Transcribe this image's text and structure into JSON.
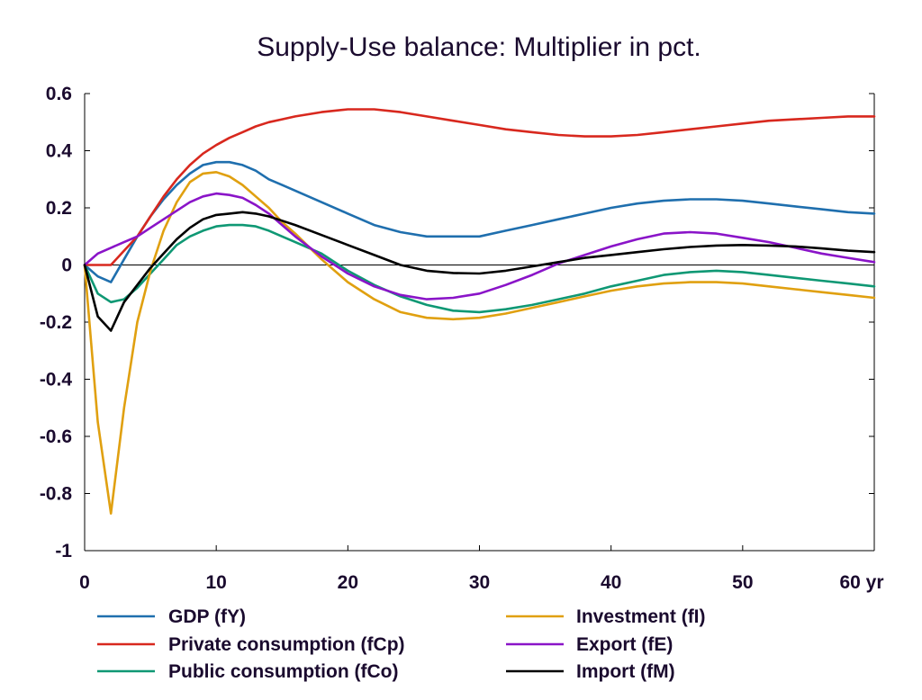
{
  "chart_data": {
    "type": "line",
    "title": "Supply-Use balance: Multiplier in pct.",
    "xlabel": "",
    "ylabel": "",
    "x_unit_label": "yr",
    "xlim": [
      0,
      60
    ],
    "ylim": [
      -1,
      0.6
    ],
    "x_ticks": [
      0,
      10,
      20,
      30,
      40,
      50,
      60
    ],
    "y_ticks": [
      -1,
      -0.8,
      -0.6,
      -0.4,
      -0.2,
      0,
      0.2,
      0.4,
      0.6
    ],
    "x_tick_labels": [
      "0",
      "10",
      "20",
      "30",
      "40",
      "50",
      "60 yr"
    ],
    "y_tick_labels": [
      "-1",
      "-0.8",
      "-0.6",
      "-0.4",
      "-0.2",
      "0",
      "0.2",
      "0.4",
      "0.6"
    ],
    "grid": false,
    "zero_line": true,
    "legend_position": "bottom",
    "x": [
      0,
      1,
      2,
      3,
      4,
      5,
      6,
      7,
      8,
      9,
      10,
      11,
      12,
      13,
      14,
      15,
      16,
      18,
      20,
      22,
      24,
      26,
      28,
      30,
      32,
      34,
      36,
      38,
      40,
      42,
      44,
      46,
      48,
      50,
      52,
      54,
      56,
      58,
      60
    ],
    "series": [
      {
        "name": "GDP (fY)",
        "color": "#1f6fae",
        "values": [
          0,
          -0.04,
          -0.06,
          0.02,
          0.1,
          0.17,
          0.23,
          0.28,
          0.32,
          0.35,
          0.36,
          0.36,
          0.35,
          0.33,
          0.3,
          0.28,
          0.26,
          0.22,
          0.18,
          0.14,
          0.115,
          0.1,
          0.1,
          0.1,
          0.12,
          0.14,
          0.16,
          0.18,
          0.2,
          0.215,
          0.225,
          0.23,
          0.23,
          0.225,
          0.215,
          0.205,
          0.195,
          0.185,
          0.18
        ]
      },
      {
        "name": "Private consumption (fCp)",
        "color": "#d8281e",
        "values": [
          0,
          0,
          0,
          0.05,
          0.1,
          0.17,
          0.24,
          0.3,
          0.35,
          0.39,
          0.42,
          0.445,
          0.465,
          0.485,
          0.5,
          0.51,
          0.52,
          0.535,
          0.545,
          0.545,
          0.535,
          0.52,
          0.505,
          0.49,
          0.475,
          0.465,
          0.455,
          0.45,
          0.45,
          0.455,
          0.465,
          0.475,
          0.485,
          0.495,
          0.505,
          0.51,
          0.515,
          0.52,
          0.52
        ]
      },
      {
        "name": "Public consumption (fCo)",
        "color": "#0f9874",
        "values": [
          0,
          -0.1,
          -0.13,
          -0.12,
          -0.08,
          -0.03,
          0.02,
          0.07,
          0.1,
          0.12,
          0.135,
          0.14,
          0.14,
          0.135,
          0.12,
          0.1,
          0.08,
          0.04,
          -0.02,
          -0.07,
          -0.11,
          -0.14,
          -0.16,
          -0.165,
          -0.155,
          -0.14,
          -0.12,
          -0.1,
          -0.075,
          -0.055,
          -0.035,
          -0.025,
          -0.02,
          -0.025,
          -0.035,
          -0.045,
          -0.055,
          -0.065,
          -0.075
        ]
      },
      {
        "name": "Investment (fI)",
        "color": "#e0a010",
        "values": [
          0,
          -0.55,
          -0.87,
          -0.5,
          -0.2,
          -0.02,
          0.12,
          0.22,
          0.29,
          0.32,
          0.325,
          0.31,
          0.28,
          0.24,
          0.2,
          0.15,
          0.11,
          0.02,
          -0.06,
          -0.12,
          -0.165,
          -0.185,
          -0.19,
          -0.185,
          -0.17,
          -0.15,
          -0.13,
          -0.11,
          -0.09,
          -0.075,
          -0.065,
          -0.06,
          -0.06,
          -0.065,
          -0.075,
          -0.085,
          -0.095,
          -0.105,
          -0.115
        ]
      },
      {
        "name": "Export (fE)",
        "color": "#8a14c8",
        "values": [
          0,
          0.04,
          0.06,
          0.08,
          0.1,
          0.13,
          0.16,
          0.19,
          0.22,
          0.24,
          0.25,
          0.245,
          0.235,
          0.21,
          0.18,
          0.14,
          0.1,
          0.03,
          -0.03,
          -0.075,
          -0.105,
          -0.12,
          -0.115,
          -0.1,
          -0.07,
          -0.035,
          0.005,
          0.035,
          0.065,
          0.09,
          0.11,
          0.115,
          0.11,
          0.095,
          0.08,
          0.06,
          0.04,
          0.025,
          0.01
        ]
      },
      {
        "name": "Import (fM)",
        "color": "#000000",
        "values": [
          0,
          -0.18,
          -0.23,
          -0.13,
          -0.07,
          -0.01,
          0.04,
          0.09,
          0.13,
          0.16,
          0.175,
          0.18,
          0.185,
          0.18,
          0.17,
          0.155,
          0.14,
          0.105,
          0.07,
          0.035,
          0.0,
          -0.02,
          -0.028,
          -0.03,
          -0.02,
          -0.005,
          0.01,
          0.025,
          0.035,
          0.045,
          0.055,
          0.063,
          0.068,
          0.07,
          0.068,
          0.065,
          0.058,
          0.05,
          0.045
        ]
      }
    ]
  }
}
